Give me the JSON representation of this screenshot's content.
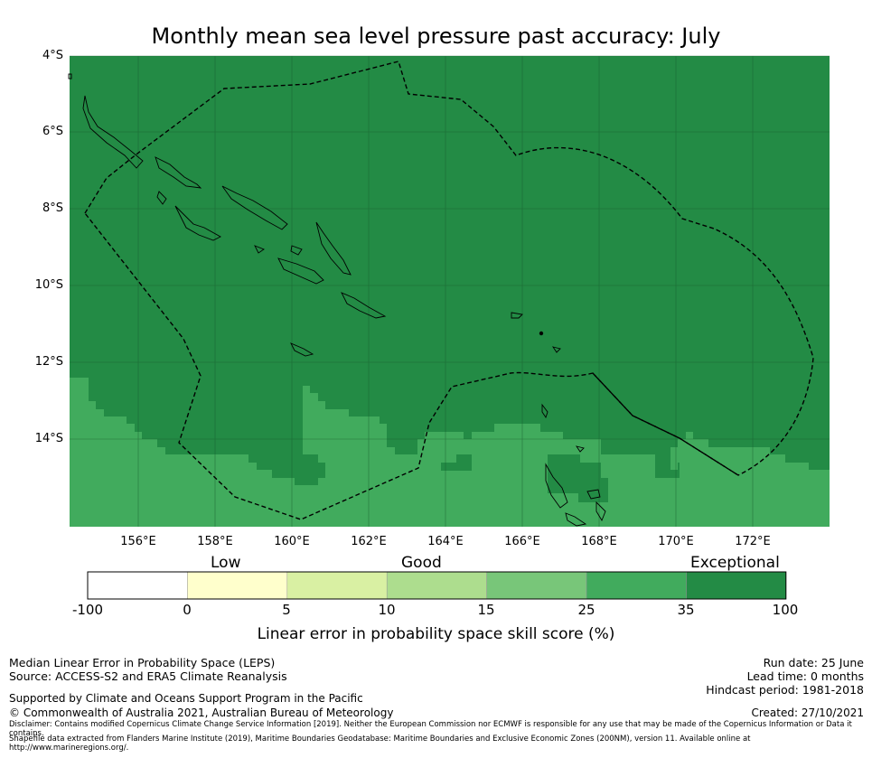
{
  "title": "Monthly mean sea level pressure past accuracy: July",
  "map": {
    "lat_labels": [
      "4°S",
      "6°S",
      "8°S",
      "10°S",
      "12°S",
      "14°S"
    ],
    "lon_labels": [
      "156°E",
      "158°E",
      "160°E",
      "162°E",
      "164°E",
      "166°E",
      "168°E",
      "170°E",
      "172°E"
    ],
    "colors": {
      "exceptional": "#238b45",
      "very_good": "#41ab5d"
    }
  },
  "colorbar": {
    "categories": [
      "Low",
      "Good",
      "Exceptional"
    ],
    "ticks": [
      "-100",
      "0",
      "5",
      "10",
      "15",
      "25",
      "35",
      "100"
    ],
    "colors": [
      "#ffffff",
      "#ffffcc",
      "#d9f0a3",
      "#addd8e",
      "#78c679",
      "#41ab5d",
      "#238b45"
    ],
    "label": "Linear error in probability space skill score (%)"
  },
  "footer": {
    "method": "Median Linear Error in Probability Space (LEPS)",
    "source": "Source: ACCESS-S2 and ERA5 Climate Reanalysis",
    "supported": "Supported by Climate and Oceans Support Program in the Pacific",
    "copyright": "© Commonwealth of Australia 2021, Australian Bureau of Meteorology",
    "disclaimer": "Disclaimer: Contains modified Copernicus Climate Change Service Information [2019]. Neither the European Commission nor ECMWF is responsible for any use that may be made of the Copernicus Information or Data it contains.",
    "shapefile": "Shapefile data extracted from Flanders Marine Institute (2019), Maritime Boundaries Geodatabase: Maritime Boundaries and Exclusive Economic Zones (200NM), version 11. Available online at http://www.marineregions.org/.",
    "run_date": "Run date: 25 June",
    "lead_time": "Lead time: 0 months",
    "hindcast": "Hindcast period: 1981-2018",
    "created": "Created: 27/10/2021"
  }
}
